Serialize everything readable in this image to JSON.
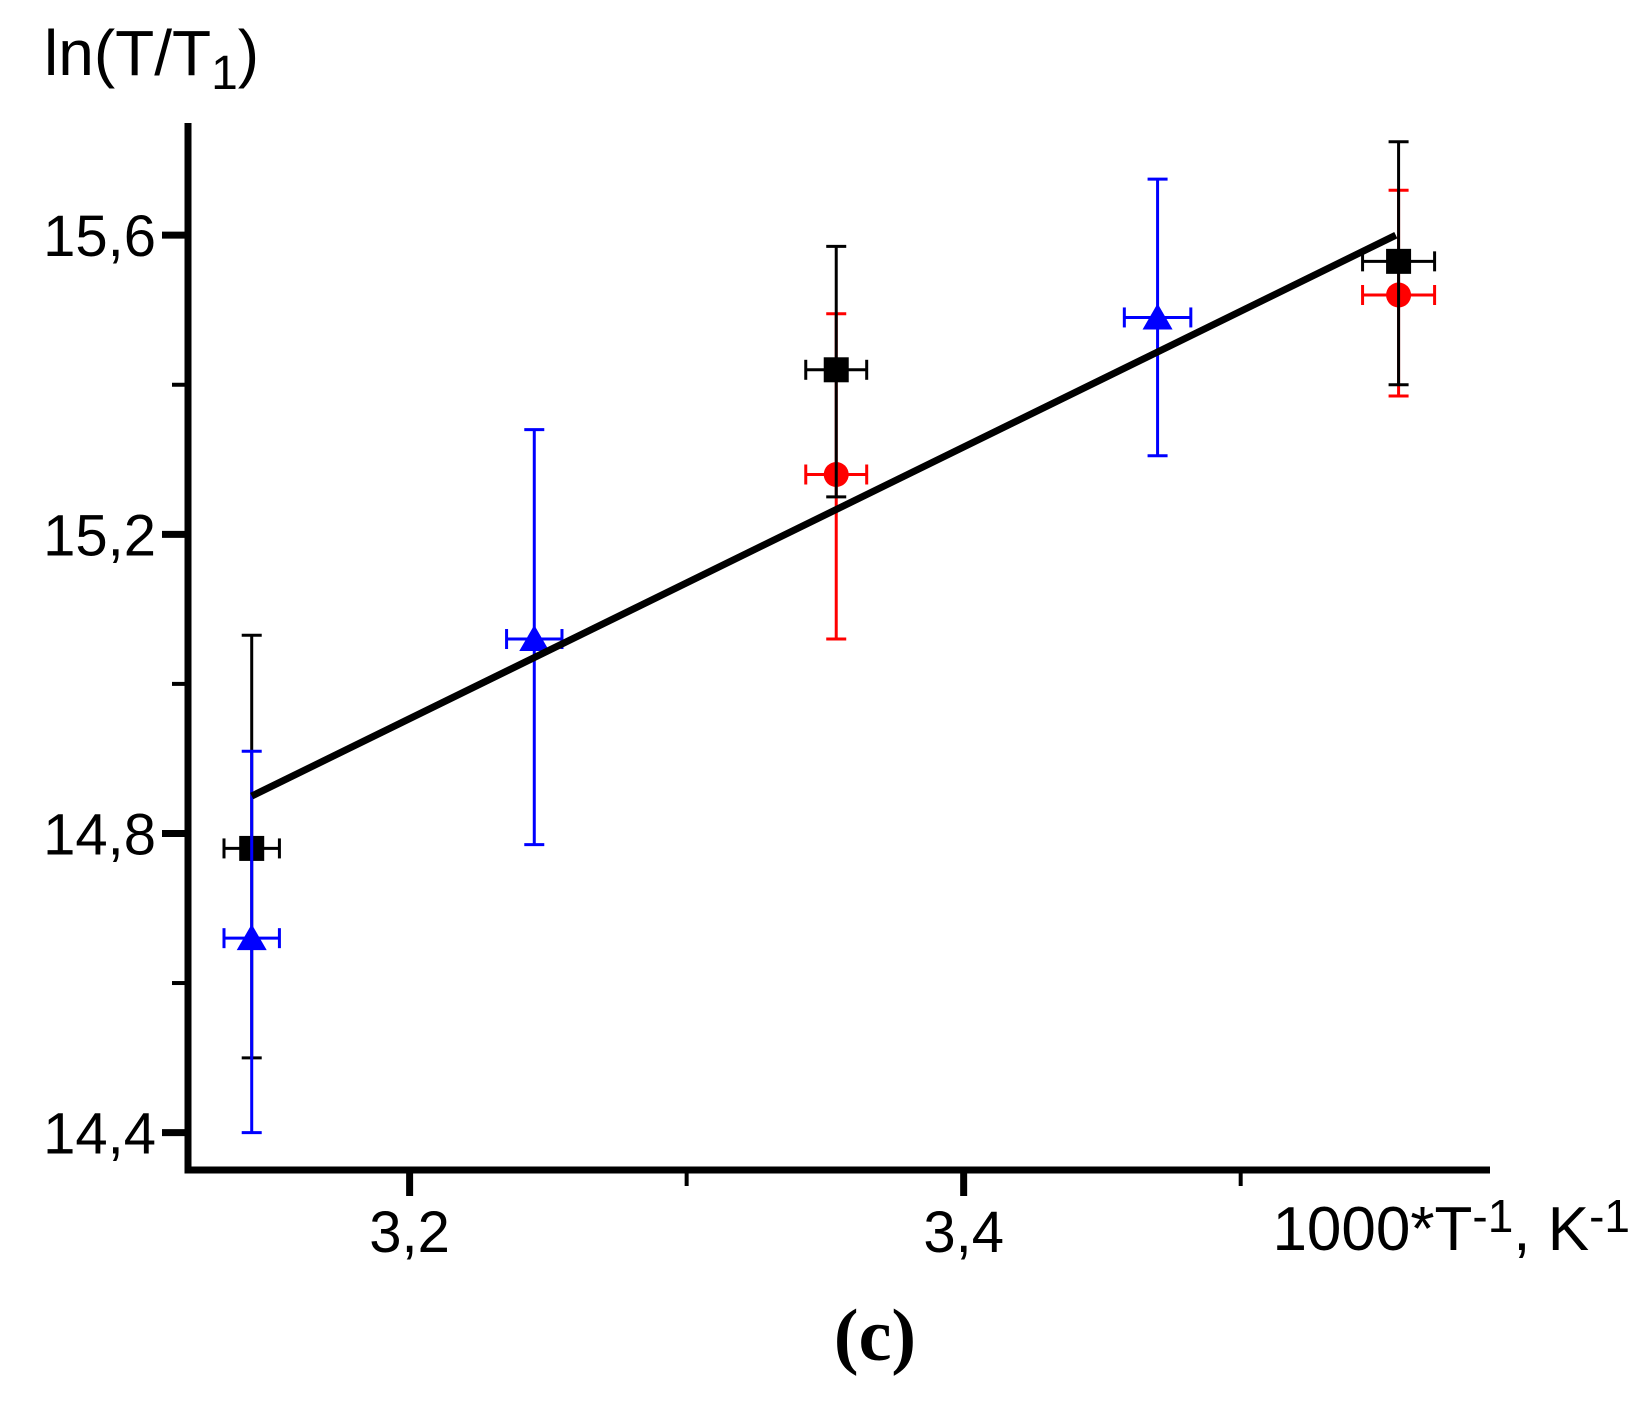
{
  "figure": {
    "ylabel": {
      "pre": "ln(T/T",
      "sub": "1",
      "post": ")"
    },
    "xlabel": {
      "p1": "1000*T",
      "sup1": "-1",
      "p2": ", K",
      "sup2": "-1"
    },
    "caption": "(c)"
  },
  "chart_data": {
    "type": "scatter",
    "title": "",
    "xlabel": "1000*T^-1, K^-1",
    "ylabel": "ln(T/T1)",
    "xlim": [
      3.12,
      3.59
    ],
    "ylim": [
      14.35,
      15.75
    ],
    "grid": false,
    "legend": "none",
    "axis_color": "#000000",
    "background": "#ffffff",
    "x_major_ticks": [
      {
        "value": 3.2,
        "label": "3,2"
      },
      {
        "value": 3.4,
        "label": "3,4"
      }
    ],
    "x_minor_ticks": [
      3.3,
      3.5
    ],
    "y_major_ticks": [
      {
        "value": 15.6,
        "label": "15,6"
      },
      {
        "value": 15.2,
        "label": "15,2"
      },
      {
        "value": 14.8,
        "label": "14,8"
      },
      {
        "value": 14.4,
        "label": "14,4"
      }
    ],
    "y_minor_ticks": [
      15.4,
      15.0,
      14.6
    ],
    "series": [
      {
        "name": "red-circles",
        "marker": "circle",
        "color": "#ff0000",
        "points": [
          {
            "x": 3.354,
            "y": 15.28,
            "ex": 0.011,
            "ey_plus": 0.215,
            "ey_minus": 0.22
          },
          {
            "x": 3.557,
            "y": 15.52,
            "ex": 0.013,
            "ey_plus": 0.14,
            "ey_minus": 0.135
          }
        ]
      },
      {
        "name": "black-squares",
        "marker": "square",
        "color": "#000000",
        "points": [
          {
            "x": 3.143,
            "y": 14.78,
            "ex": 0.01,
            "ey_plus": 0.285,
            "ey_minus": 0.28
          },
          {
            "x": 3.354,
            "y": 15.42,
            "ex": 0.011,
            "ey_plus": 0.165,
            "ey_minus": 0.17
          },
          {
            "x": 3.557,
            "y": 15.565,
            "ex": 0.013,
            "ey_plus": 0.16,
            "ey_minus": 0.165
          }
        ]
      },
      {
        "name": "blue-triangles",
        "marker": "triangle",
        "color": "#0000ff",
        "points": [
          {
            "x": 3.143,
            "y": 14.66,
            "ex": 0.01,
            "ey_plus": 0.25,
            "ey_minus": 0.26
          },
          {
            "x": 3.245,
            "y": 15.06,
            "ex": 0.01,
            "ey_plus": 0.28,
            "ey_minus": 0.275
          },
          {
            "x": 3.47,
            "y": 15.49,
            "ex": 0.012,
            "ey_plus": 0.185,
            "ey_minus": 0.185
          }
        ]
      }
    ],
    "fit_line": {
      "color": "#000000",
      "x1": 3.143,
      "y1": 14.85,
      "x2": 3.556,
      "y2": 15.6
    }
  }
}
